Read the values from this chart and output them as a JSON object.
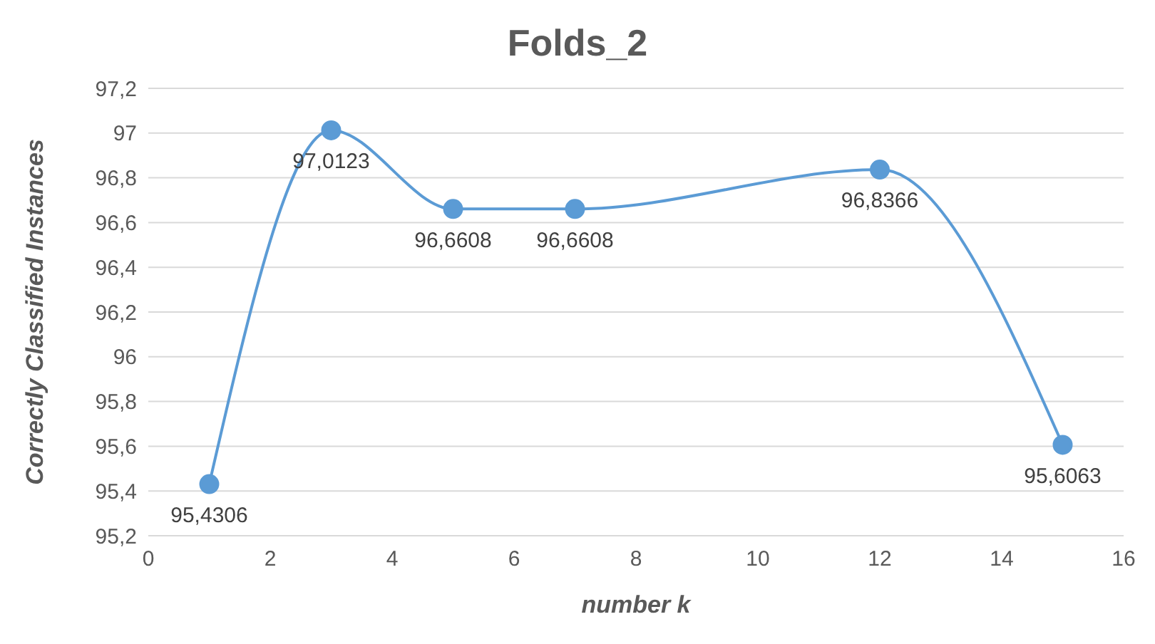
{
  "chart_data": {
    "type": "line",
    "title": "Folds_2",
    "xlabel": "number k",
    "ylabel": "Correctly Classified Instances",
    "x": [
      1,
      3,
      5,
      7,
      12,
      15
    ],
    "series": [
      {
        "color": "#5b9bd5",
        "values": [
          95.4306,
          97.0123,
          96.6608,
          96.6608,
          96.8366,
          95.6063
        ],
        "value_labels": [
          "95,4306",
          "97,0123",
          "96,6608",
          "96,6608",
          "96,8366",
          "95,6063"
        ]
      }
    ],
    "xlim": [
      0,
      16
    ],
    "xticks": [
      0,
      2,
      4,
      6,
      8,
      10,
      12,
      14,
      16
    ],
    "ylim": [
      95.2,
      97.2
    ],
    "yticks": [
      {
        "value": 95.2,
        "label": "95,2"
      },
      {
        "value": 95.4,
        "label": "95,4"
      },
      {
        "value": 95.6,
        "label": "95,6"
      },
      {
        "value": 95.8,
        "label": "95,8"
      },
      {
        "value": 96,
        "label": "96"
      },
      {
        "value": 96.2,
        "label": "96,2"
      },
      {
        "value": 96.4,
        "label": "96,4"
      },
      {
        "value": 96.6,
        "label": "96,6"
      },
      {
        "value": 96.8,
        "label": "96,8"
      },
      {
        "value": 97,
        "label": "97"
      },
      {
        "value": 97.2,
        "label": "97,2"
      }
    ],
    "grid": "y",
    "marker": "circle",
    "line_style": "solid"
  }
}
